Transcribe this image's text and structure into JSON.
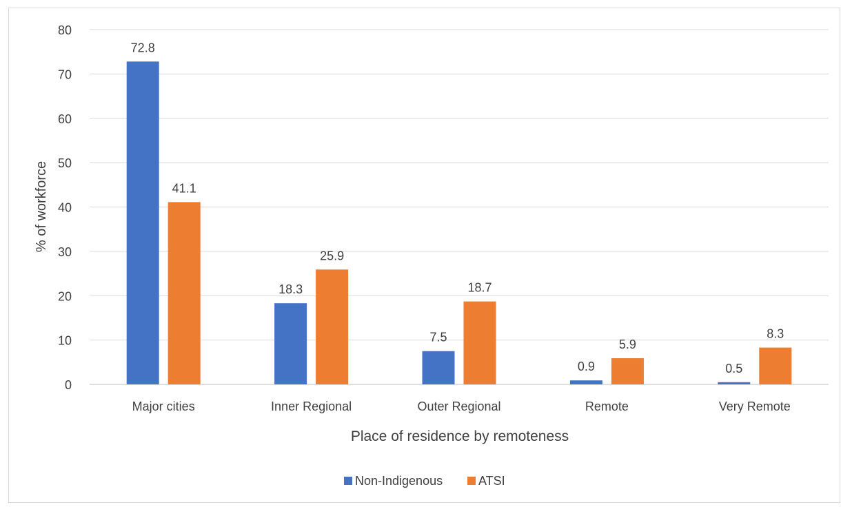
{
  "chart_data": {
    "type": "bar",
    "title": "",
    "xlabel": "Place of residence by remoteness",
    "ylabel": "% of workforce",
    "categories": [
      "Major cities",
      "Inner Regional",
      "Outer Regional",
      "Remote",
      "Very Remote"
    ],
    "series": [
      {
        "name": "Non-Indigenous",
        "values": [
          72.8,
          18.3,
          7.5,
          0.9,
          0.5
        ],
        "color": "#4472C4"
      },
      {
        "name": "ATSI",
        "values": [
          41.1,
          25.9,
          18.7,
          5.9,
          8.3
        ],
        "color": "#ED7D31"
      }
    ],
    "ylim": [
      0,
      80
    ],
    "yticks": [
      "0",
      "10",
      "20",
      "30",
      "40",
      "50",
      "60",
      "70",
      "80"
    ],
    "grid": true,
    "legend": "bottom-center"
  }
}
